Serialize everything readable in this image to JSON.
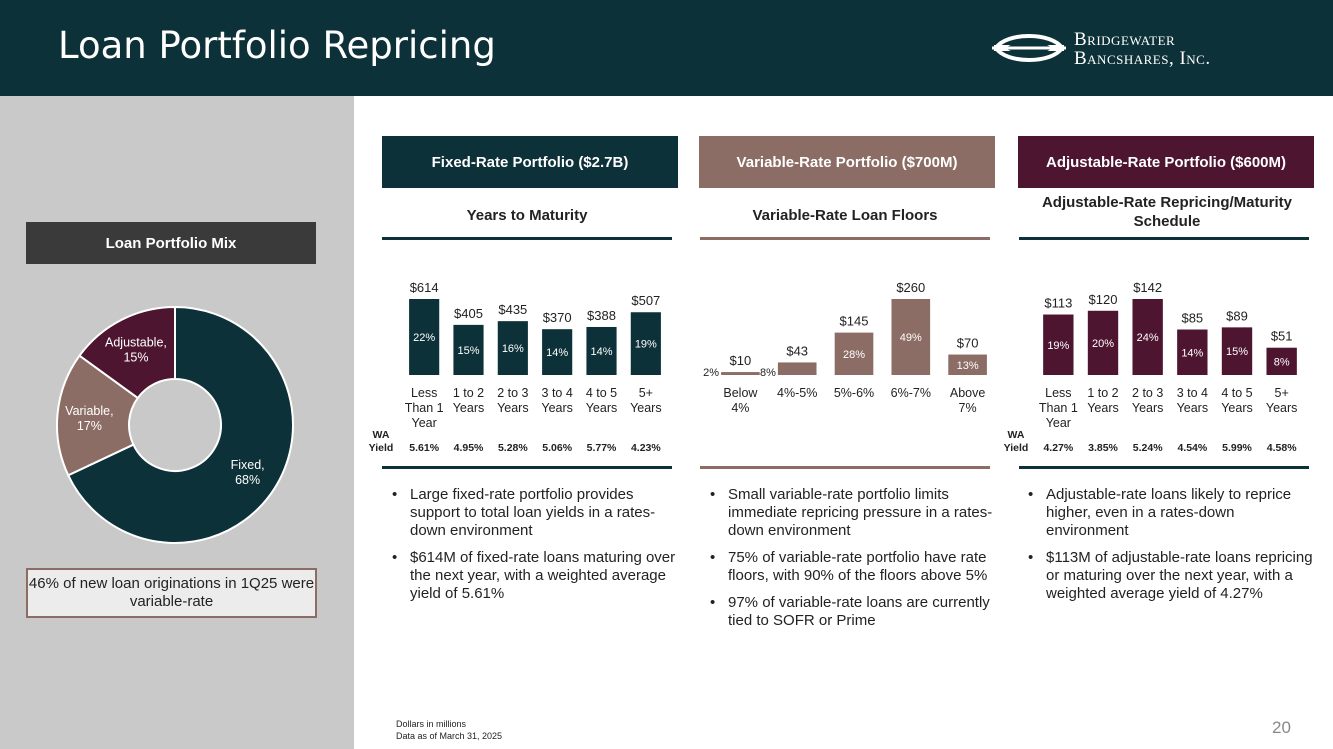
{
  "header": {
    "title": "Loan Portfolio Repricing",
    "logo_line1": "Bridgewater",
    "logo_line2": "Bancshares, Inc."
  },
  "colors": {
    "navy": "#0d3138",
    "taupe": "#8c6d65",
    "plum": "#4e1530",
    "gray_panel": "#c9c9c9"
  },
  "mix": {
    "title": "Loan Portfolio Mix",
    "note": "46% of new loan originations in 1Q25 were variable-rate"
  },
  "columns": {
    "fixed": {
      "head": "Fixed-Rate Portfolio ($2.7B)",
      "subtitle": "Years to Maturity",
      "bullets": [
        "Large fixed-rate portfolio provides support to total loan yields in a rates-down environment",
        "$614M of fixed-rate loans maturing over the next year, with a weighted average yield of 5.61%"
      ]
    },
    "variable": {
      "head": "Variable-Rate Portfolio ($700M)",
      "subtitle": "Variable-Rate Loan Floors",
      "bullets": [
        "Small variable-rate portfolio limits immediate repricing pressure in a rates-down environment",
        "75% of variable-rate portfolio have rate floors, with 90% of the floors above 5%",
        "97% of variable-rate loans are currently tied to SOFR or Prime"
      ]
    },
    "adjustable": {
      "head": "Adjustable-Rate Portfolio ($600M)",
      "subtitle": "Adjustable-Rate Repricing/Maturity Schedule",
      "bullets": [
        "Adjustable-rate loans likely to reprice higher, even in a rates-down environment",
        "$113M of adjustable-rate loans repricing or maturing over the next year, with a weighted average yield of 4.27%"
      ]
    }
  },
  "footer": {
    "note1": "Dollars in millions",
    "note2": "Data as of March 31, 2025",
    "page": "20"
  },
  "chart_data": [
    {
      "type": "pie",
      "title": "Loan Portfolio Mix",
      "donut": true,
      "categories": [
        "Fixed",
        "Variable",
        "Adjustable"
      ],
      "values": [
        68,
        17,
        15
      ],
      "labels": [
        "Fixed, 68%",
        "Variable, 17%",
        "Adjustable, 15%"
      ]
    },
    {
      "type": "bar",
      "title": "Years to Maturity",
      "categories": [
        "Less Than 1 Year",
        "1 to 2 Years",
        "2 to 3 Years",
        "3 to 4 Years",
        "4 to 5 Years",
        "5+ Years"
      ],
      "values": [
        614,
        405,
        435,
        370,
        388,
        507
      ],
      "value_labels": [
        "$614",
        "$405",
        "$435",
        "$370",
        "$388",
        "$507"
      ],
      "pct_labels": [
        "22%",
        "15%",
        "16%",
        "14%",
        "14%",
        "19%"
      ],
      "wa_label": "WA Yield",
      "wa_yield": [
        "5.61%",
        "4.95%",
        "5.28%",
        "5.06%",
        "5.77%",
        "4.23%"
      ]
    },
    {
      "type": "bar",
      "title": "Variable-Rate Loan Floors",
      "categories": [
        "Below 4%",
        "4%-5%",
        "5%-6%",
        "6%-7%",
        "Above 7%"
      ],
      "values": [
        10,
        43,
        145,
        260,
        70
      ],
      "value_labels": [
        "$10",
        "$43",
        "$145",
        "$260",
        "$70"
      ],
      "pct_labels": [
        "2%",
        "8%",
        "28%",
        "49%",
        "13%"
      ]
    },
    {
      "type": "bar",
      "title": "Adjustable-Rate Repricing/Maturity Schedule",
      "categories": [
        "Less Than 1 Year",
        "1 to 2 Years",
        "2 to 3 Years",
        "3 to 4 Years",
        "4 to 5 Years",
        "5+ Years"
      ],
      "values": [
        113,
        120,
        142,
        85,
        89,
        51
      ],
      "value_labels": [
        "$113",
        "$120",
        "$142",
        "$85",
        "$89",
        "$51"
      ],
      "pct_labels": [
        "19%",
        "20%",
        "24%",
        "14%",
        "15%",
        "8%"
      ],
      "wa_label": "WA Yield",
      "wa_yield": [
        "4.27%",
        "3.85%",
        "5.24%",
        "4.54%",
        "5.99%",
        "4.58%"
      ]
    }
  ]
}
